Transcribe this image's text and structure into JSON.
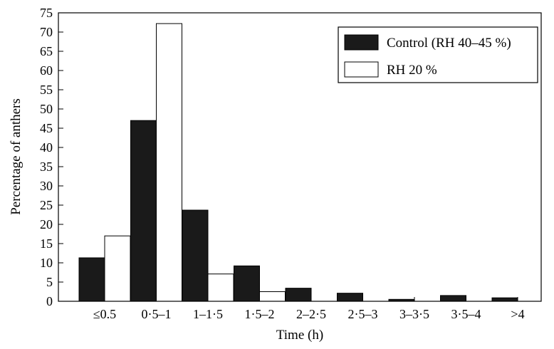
{
  "chart_data": {
    "type": "bar",
    "categories": [
      "≤0.5",
      "0·5–1",
      "1–1·5",
      "1·5–2",
      "2–2·5",
      "2·5–3",
      "3–3·5",
      "3·5–4",
      ">4"
    ],
    "series": [
      {
        "name": "Control (RH 40–45 %)",
        "color": "#1a1a1a",
        "values": [
          11.3,
          47.0,
          23.7,
          9.2,
          3.4,
          2.1,
          0.5,
          1.5,
          0.9
        ]
      },
      {
        "name": "RH 20 %",
        "color": "#ffffff",
        "values": [
          17.0,
          72.2,
          7.1,
          2.5,
          0,
          0,
          0,
          0,
          0
        ]
      }
    ],
    "xlabel": "Time (h)",
    "ylabel": "Percentage of anthers",
    "ylim": [
      0,
      75
    ],
    "yticks": [
      0,
      5,
      10,
      15,
      20,
      25,
      30,
      35,
      40,
      45,
      50,
      55,
      60,
      65,
      70,
      75
    ],
    "legend_position": "top-right",
    "grid": false
  }
}
